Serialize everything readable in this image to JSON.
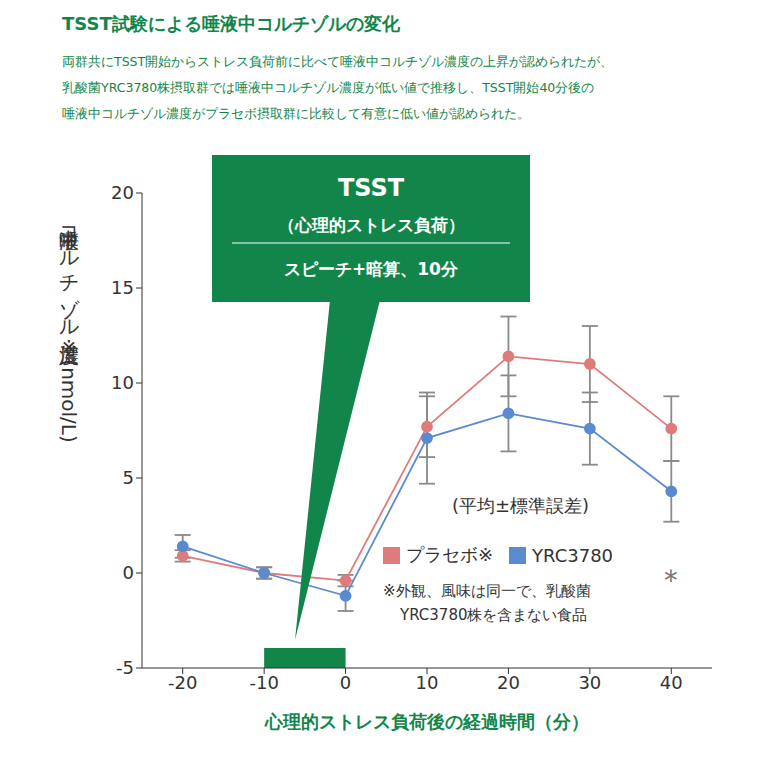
{
  "chart_data": {
    "type": "line",
    "title": "TSST試験による唾液中コルチゾルの変化",
    "subtitle": [
      "両群共にTSST開始からストレス負荷前に比べて唾液中コルチゾル濃度の上昇が認められたが、",
      "乳酸菌YRC3780株摂取群では唾液中コルチゾル濃度が低い値で推移し、TSST開始40分後の",
      "唾液中コルチゾル濃度がプラセボ摂取群に比較して有意に低い値が認められた。"
    ],
    "x_label": "心理的ストレス負荷後の経過時間（分）",
    "y_label": "唾液中コルチゾル濃度 ※(nmol/L)",
    "x": [
      -20,
      -10,
      0,
      10,
      20,
      30,
      40
    ],
    "series": [
      {
        "name": "プラセボ※",
        "color": "#e07b7b",
        "marker": "circle",
        "values": [
          0.9,
          0.0,
          -0.4,
          7.7,
          11.4,
          11.0,
          7.6
        ],
        "errors": [
          0.3,
          0.3,
          0.3,
          1.6,
          2.1,
          2.0,
          1.7
        ]
      },
      {
        "name": "YRC3780",
        "color": "#5a8ad0",
        "marker": "circle",
        "values": [
          1.4,
          0.0,
          -1.2,
          7.1,
          8.4,
          7.6,
          4.3
        ],
        "errors": [
          0.6,
          0.3,
          0.8,
          2.4,
          2.0,
          1.9,
          1.6
        ]
      }
    ],
    "xlim": [
      -25,
      45
    ],
    "xticks": [
      -20,
      -10,
      0,
      10,
      20,
      30,
      40
    ],
    "ylim": [
      -5,
      20
    ],
    "yticks": [
      -5,
      0,
      5,
      10,
      15,
      20
    ],
    "callout": {
      "title": "TSST",
      "subtitle": "（心理的ストレス負荷）",
      "detail": "スピーチ+暗算、10分"
    },
    "stress_period": [
      -10,
      0
    ],
    "error_note": "(平均±標準誤差)",
    "footnote": [
      "※外観、風味は同一で、乳酸菌",
      "YRC3780株を含まない食品"
    ],
    "significance": {
      "x": 40,
      "label": "＊"
    },
    "legend": "lower right",
    "grid": false
  }
}
